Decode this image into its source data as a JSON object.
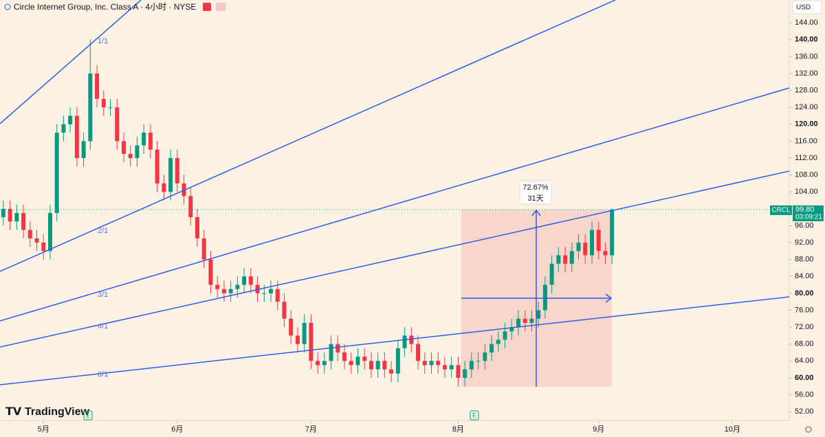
{
  "header": {
    "title": "Circle Internet Group, Inc. Class A · 4小时 · NYSE",
    "currency": "USD",
    "brand": "TradingView",
    "event_markers": [
      "E",
      "E"
    ]
  },
  "chart_data": {
    "type": "candlestick",
    "open": [
      98,
      100,
      97,
      99,
      95,
      93,
      92,
      90,
      99,
      118,
      120,
      122,
      112,
      116,
      132,
      126,
      124,
      124,
      116,
      113,
      112,
      115,
      118,
      114,
      106,
      104,
      112,
      106,
      103,
      98,
      93,
      88,
      82,
      81,
      80,
      81,
      82,
      84,
      82,
      80,
      80,
      81,
      78,
      74,
      70,
      68,
      73,
      64,
      63,
      64,
      68,
      66,
      64,
      63,
      65,
      64,
      62,
      64,
      62,
      61,
      67,
      70,
      68,
      64,
      63,
      64,
      63,
      62,
      63,
      60,
      62,
      64,
      64,
      66,
      68,
      69,
      71,
      72,
      74,
      73,
      74,
      76,
      82,
      87,
      89,
      87,
      90,
      92,
      89,
      95,
      90,
      89
    ],
    "high": [
      102,
      102,
      101,
      101,
      97,
      95,
      94,
      101,
      120,
      122,
      124,
      124,
      118,
      140,
      134,
      128,
      126,
      126,
      118,
      115,
      117,
      120,
      120,
      116,
      108,
      114,
      114,
      108,
      105,
      100,
      95,
      90,
      84,
      83,
      83,
      84,
      86,
      86,
      84,
      82,
      83,
      83,
      80,
      76,
      72,
      75,
      75,
      66,
      66,
      70,
      70,
      68,
      66,
      67,
      67,
      66,
      66,
      66,
      64,
      69,
      72,
      72,
      70,
      66,
      66,
      66,
      65,
      65,
      65,
      64,
      66,
      66,
      68,
      70,
      71,
      73,
      74,
      76,
      76,
      76,
      78,
      84,
      89,
      91,
      91,
      92,
      94,
      94,
      97,
      97,
      92,
      100.2
    ],
    "low": [
      96,
      95,
      95,
      93,
      91,
      90,
      88,
      88,
      97,
      116,
      118,
      110,
      110,
      114,
      124,
      122,
      122,
      114,
      111,
      110,
      110,
      113,
      112,
      104,
      102,
      102,
      104,
      101,
      96,
      91,
      86,
      80,
      79,
      78,
      78,
      79,
      80,
      80,
      78,
      78,
      78,
      76,
      72,
      68,
      66,
      66,
      62,
      61,
      61,
      62,
      64,
      62,
      61,
      61,
      62,
      60,
      60,
      60,
      59,
      59,
      65,
      66,
      62,
      61,
      61,
      61,
      60,
      60,
      58,
      58,
      60,
      62,
      62,
      64,
      66,
      67,
      69,
      70,
      71,
      71,
      72,
      74,
      80,
      85,
      85,
      85,
      88,
      87,
      87,
      88,
      87,
      87
    ],
    "close": [
      100,
      97,
      99,
      95,
      93,
      92,
      90,
      99,
      118,
      120,
      122,
      112,
      116,
      132,
      126,
      124,
      124,
      116,
      113,
      112,
      115,
      118,
      114,
      106,
      104,
      112,
      106,
      103,
      98,
      93,
      88,
      82,
      81,
      80,
      81,
      82,
      84,
      82,
      80,
      80,
      81,
      78,
      74,
      70,
      68,
      73,
      64,
      63,
      64,
      68,
      66,
      64,
      63,
      65,
      64,
      62,
      64,
      62,
      61,
      67,
      70,
      68,
      64,
      63,
      64,
      63,
      62,
      63,
      60,
      62,
      64,
      64,
      66,
      68,
      69,
      71,
      72,
      74,
      73,
      74,
      76,
      82,
      87,
      89,
      87,
      90,
      92,
      89,
      95,
      90,
      89,
      99.8
    ],
    "colors": {
      "up": "#089981",
      "down": "#f23645"
    },
    "xlim": [
      -0.5,
      117.5
    ],
    "xticks": [
      {
        "value": 6,
        "label": "5月"
      },
      {
        "value": 26,
        "label": "6月"
      },
      {
        "value": 46,
        "label": "7月"
      },
      {
        "value": 68,
        "label": "8月"
      },
      {
        "value": 89,
        "label": "9月"
      },
      {
        "value": 109,
        "label": "10月"
      }
    ],
    "ylim": [
      49.9,
      149.4
    ],
    "yticks": [
      {
        "value": 52,
        "label": "52.00"
      },
      {
        "value": 56,
        "label": "56.00"
      },
      {
        "value": 60,
        "label": "60.00"
      },
      {
        "value": 64,
        "label": "64.00"
      },
      {
        "value": 68,
        "label": "68.00"
      },
      {
        "value": 72,
        "label": "72.00"
      },
      {
        "value": 76,
        "label": "76.00"
      },
      {
        "value": 80,
        "label": "80.00"
      },
      {
        "value": 84,
        "label": "84.00"
      },
      {
        "value": 88,
        "label": "88.00"
      },
      {
        "value": 92,
        "label": "92.00"
      },
      {
        "value": 96,
        "label": "96.00"
      },
      {
        "value": 104,
        "label": "104.00"
      },
      {
        "value": 108,
        "label": "108.00"
      },
      {
        "value": 112,
        "label": "112.00"
      },
      {
        "value": 116,
        "label": "116.00"
      },
      {
        "value": 120,
        "label": "120.00"
      },
      {
        "value": 124,
        "label": "124.00"
      },
      {
        "value": 128,
        "label": "128.00"
      },
      {
        "value": 132,
        "label": "132.00"
      },
      {
        "value": 136,
        "label": "136.00"
      },
      {
        "value": 140,
        "label": "140.00"
      },
      {
        "value": 144,
        "label": "144.00"
      }
    ],
    "annotations": {
      "fan_labels": [
        "1/1",
        "2/1",
        "3/1",
        "4/1",
        "8/1"
      ],
      "measure": {
        "change": "72.67%",
        "duration": "31天"
      },
      "last_price": {
        "symbol": "CRCL",
        "price": "99.80",
        "countdown": "03:09:21"
      }
    }
  }
}
